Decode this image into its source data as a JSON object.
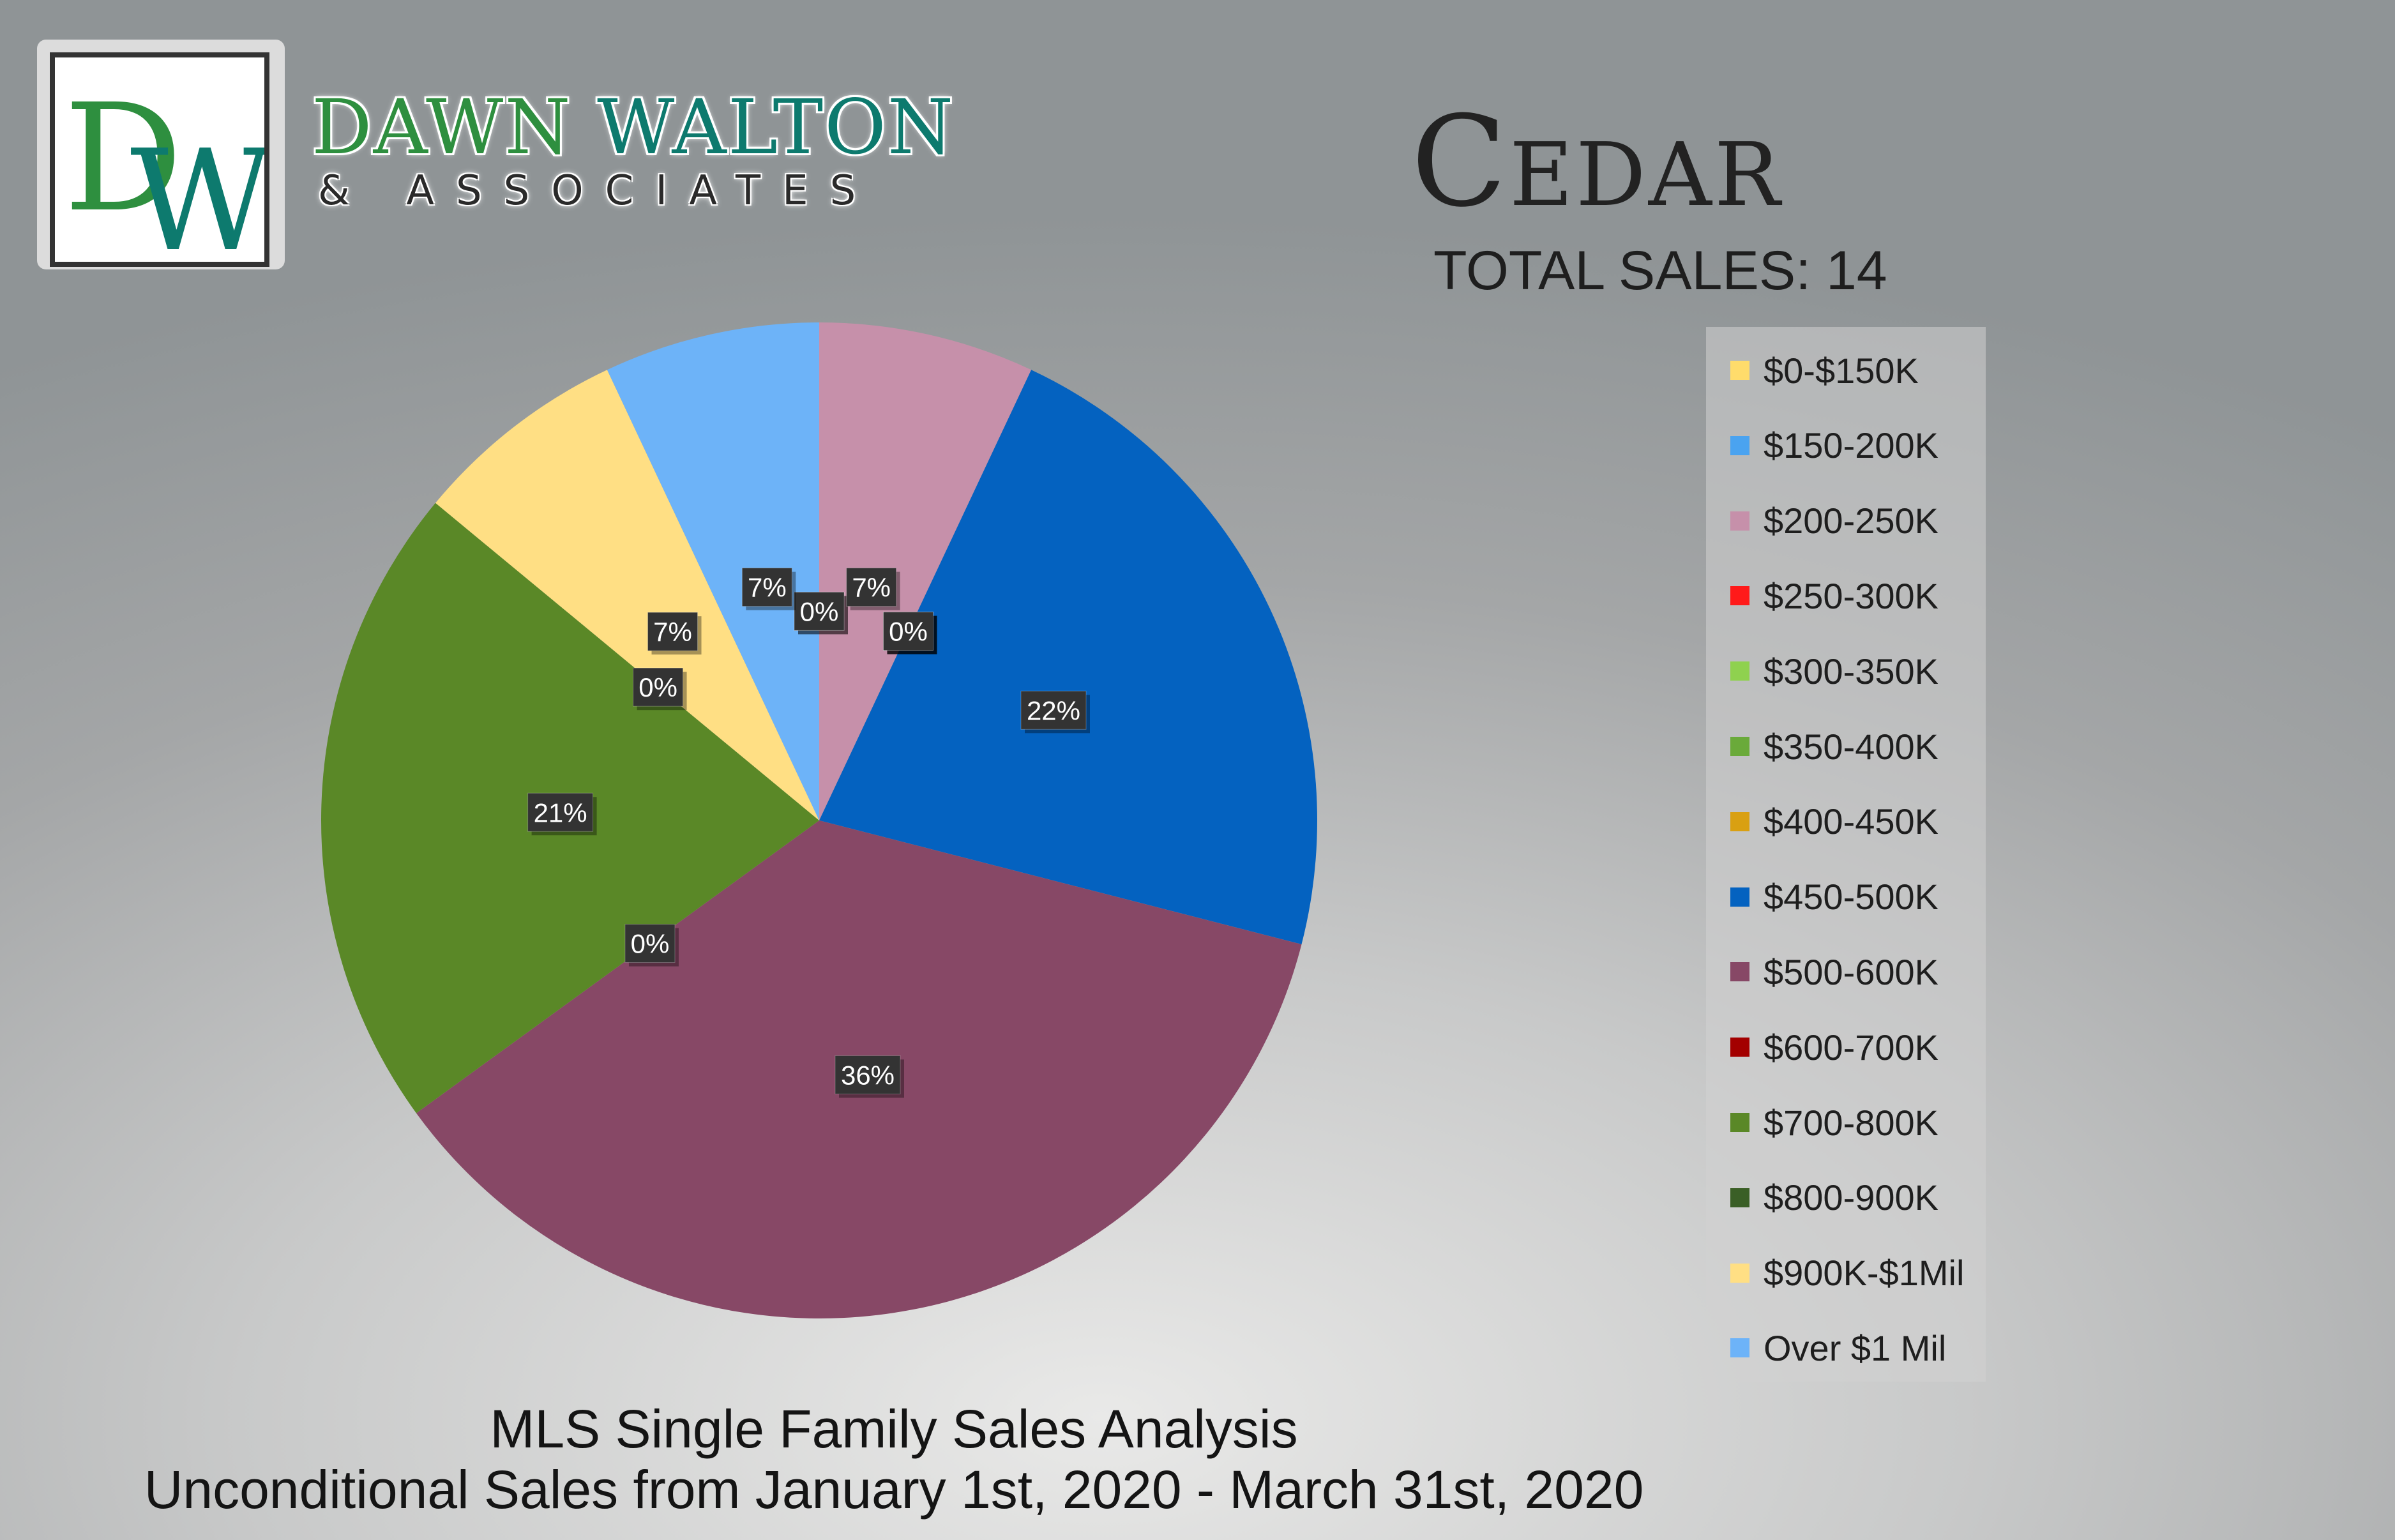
{
  "logo": {
    "monogram": "DW",
    "brand_first": "DAWN",
    "brand_last": "WALTON",
    "tagline": "& ASSOCIATES"
  },
  "header": {
    "area": "Cedar",
    "total_sales": "TOTAL SALES: 14"
  },
  "footer": {
    "line1": "MLS Single Family Sales Analysis",
    "line2": "Unconditional Sales from January 1st, 2020 - March 31st, 2020"
  },
  "chart_data": {
    "type": "pie",
    "title": "Cedar",
    "subtitle": "TOTAL SALES: 14",
    "legend_position": "right",
    "categories": [
      "$0-$150K",
      "$150-200K",
      "$200-250K",
      "$250-300K",
      "$300-350K",
      "$350-400K",
      "$400-450K",
      "$450-500K",
      "$500-600K",
      "$600-700K",
      "$700-800K",
      "$800-900K",
      "$900K-$1Mil",
      "Over $1 Mil"
    ],
    "values": [
      0,
      0,
      7,
      0,
      0,
      0,
      0,
      22,
      36,
      0,
      21,
      0,
      7,
      7
    ],
    "labels": [
      "0%",
      "0%",
      "7%",
      "0%",
      "0%",
      "0%",
      "0%",
      "22%",
      "36%",
      "0%",
      "21%",
      "0%",
      "7%",
      "7%"
    ],
    "colors": [
      "#ffdc6b",
      "#4aa3f0",
      "#c690aa",
      "#ff1a1a",
      "#8fd14f",
      "#6aaa3a",
      "#d9a012",
      "#0462c0",
      "#874866",
      "#a30000",
      "#5a8827",
      "#3a5f26",
      "#ffdf84",
      "#6db3f8"
    ]
  }
}
